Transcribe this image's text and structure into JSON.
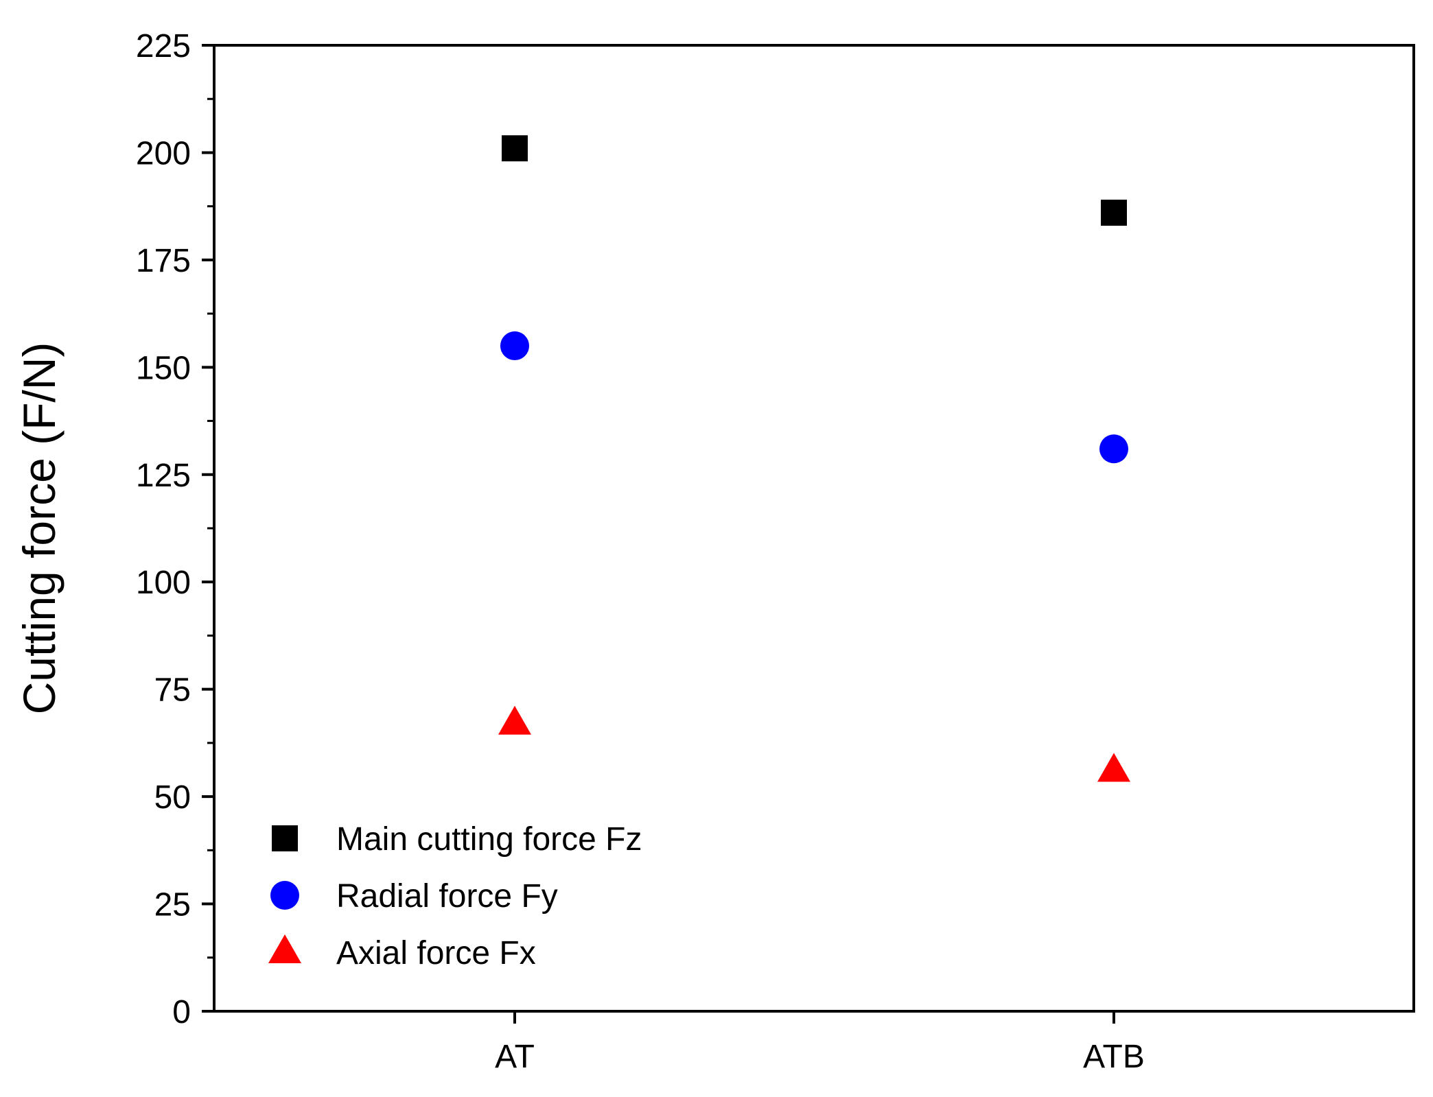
{
  "chart_data": {
    "type": "scatter",
    "categories": [
      "AT",
      "ATB"
    ],
    "series": [
      {
        "name": "Main cutting force Fz",
        "values": [
          201,
          186
        ],
        "marker": "square",
        "color": "#000000"
      },
      {
        "name": "Radial force Fy",
        "values": [
          155,
          131
        ],
        "marker": "circle",
        "color": "#0000ff"
      },
      {
        "name": "Axial force Fx",
        "values": [
          67,
          56
        ],
        "marker": "triangle",
        "color": "#ff0000"
      }
    ],
    "ylabel": "Cutting force (F/N)",
    "xlabel": "",
    "ylim": [
      0,
      225
    ],
    "yticks": [
      "0",
      "25",
      "50",
      "75",
      "100",
      "125",
      "150",
      "175",
      "200",
      "225"
    ],
    "legend_position": "bottom-left",
    "grid": false
  }
}
